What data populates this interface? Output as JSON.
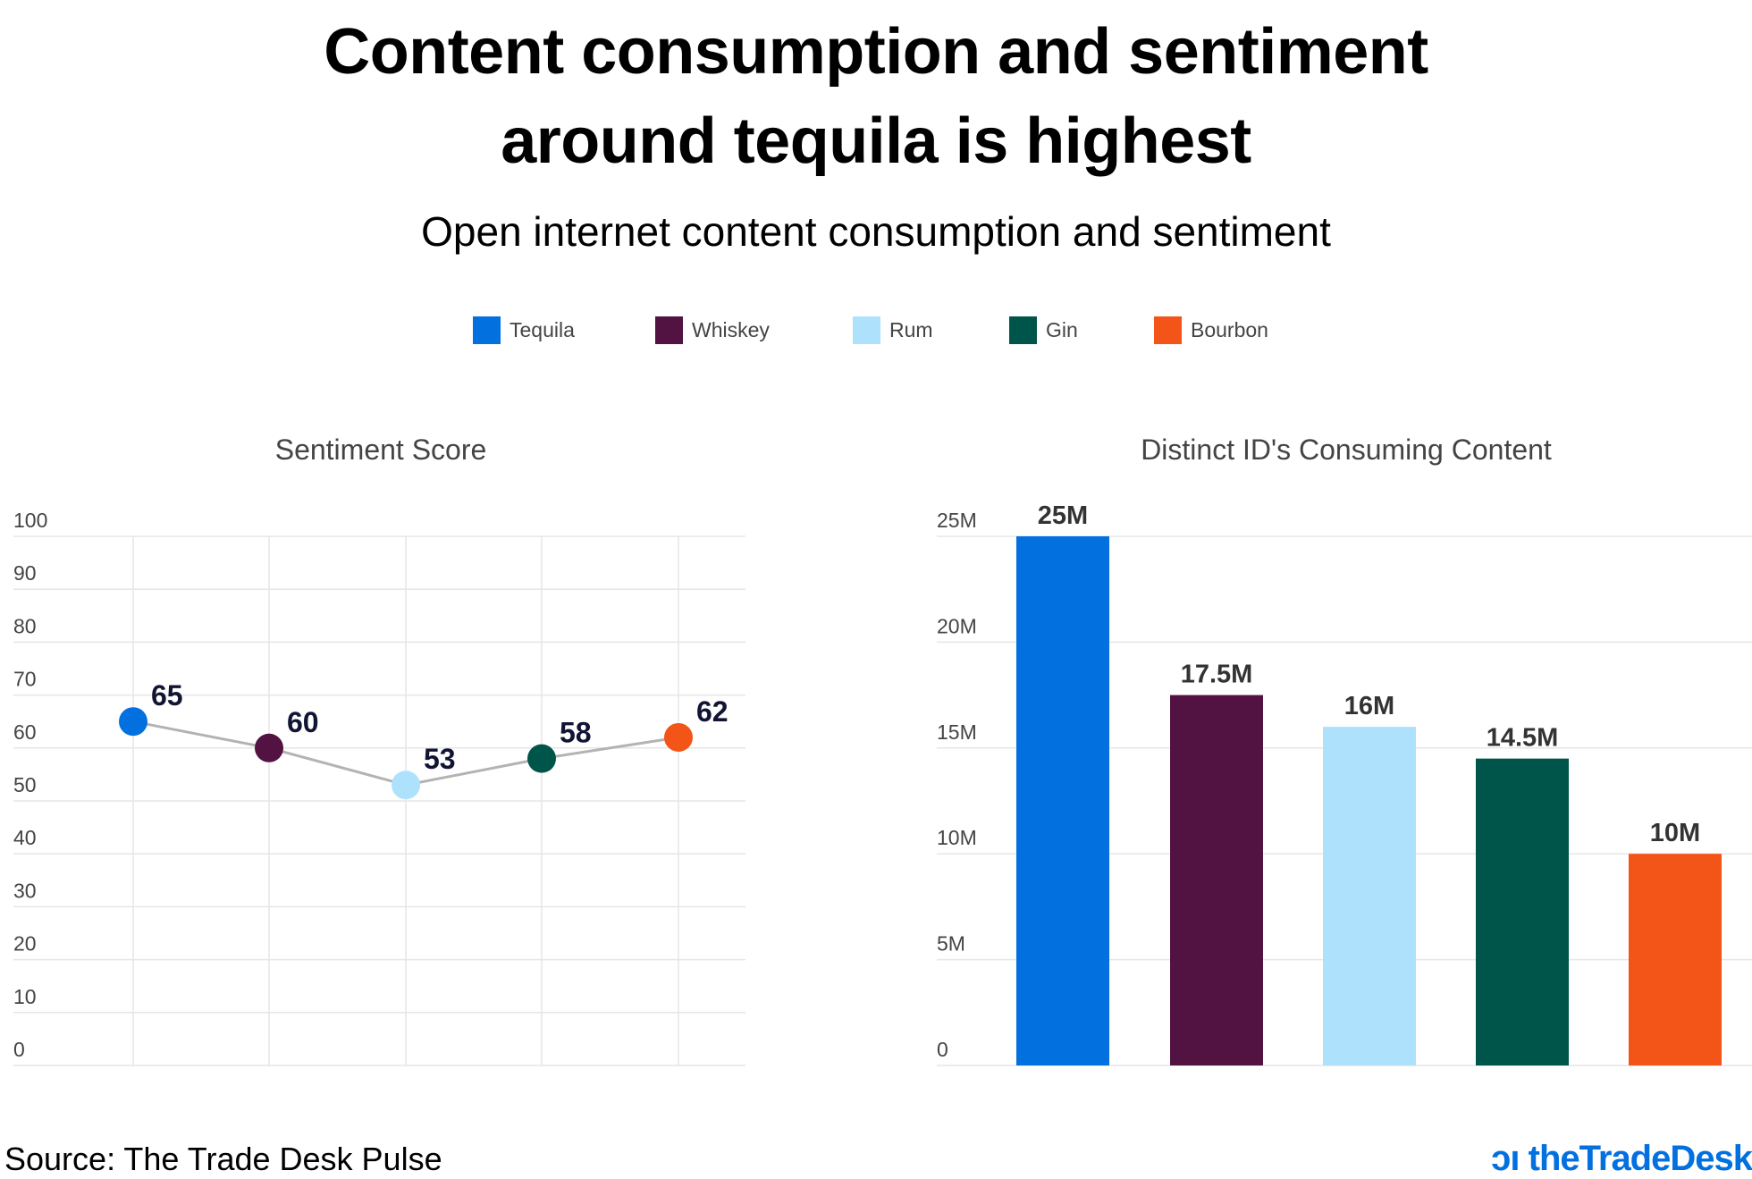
{
  "title_line1": "Content consumption and sentiment",
  "title_line2": "around tequila is highest",
  "subtitle": "Open internet content consumption and sentiment",
  "legend": [
    {
      "label": "Tequila",
      "color": "#0370E0"
    },
    {
      "label": "Whiskey",
      "color": "#521242"
    },
    {
      "label": "Rum",
      "color": "#AEE2FC"
    },
    {
      "label": "Gin",
      "color": "#00554A"
    },
    {
      "label": "Bourbon",
      "color": "#F35417"
    }
  ],
  "chart_data": [
    {
      "type": "line",
      "title": "Sentiment Score",
      "categories": [
        "Tequila",
        "Whiskey",
        "Rum",
        "Gin",
        "Bourbon"
      ],
      "values": [
        65,
        60,
        53,
        58,
        62
      ],
      "data_labels": [
        "65",
        "60",
        "53",
        "58",
        "62"
      ],
      "ylim": [
        0,
        100
      ],
      "yticks": [
        "0",
        "10",
        "20",
        "30",
        "40",
        "50",
        "60",
        "70",
        "80",
        "90",
        "100"
      ],
      "grid": true,
      "line_color": "#B3B3B3"
    },
    {
      "type": "bar",
      "title": "Distinct ID's Consuming Content",
      "categories": [
        "Tequila",
        "Whiskey",
        "Rum",
        "Gin",
        "Bourbon"
      ],
      "values": [
        25000000,
        17500000,
        16000000,
        14500000,
        10000000
      ],
      "data_labels": [
        "25M",
        "17.5M",
        "16M",
        "14.5M",
        "10M"
      ],
      "ylim": [
        0,
        25000000
      ],
      "yticks": [
        "0",
        "5M",
        "10M",
        "15M",
        "20M",
        "25M"
      ],
      "grid": true
    }
  ],
  "source": "Source: The Trade Desk Pulse",
  "logo": "theTradeDesk"
}
